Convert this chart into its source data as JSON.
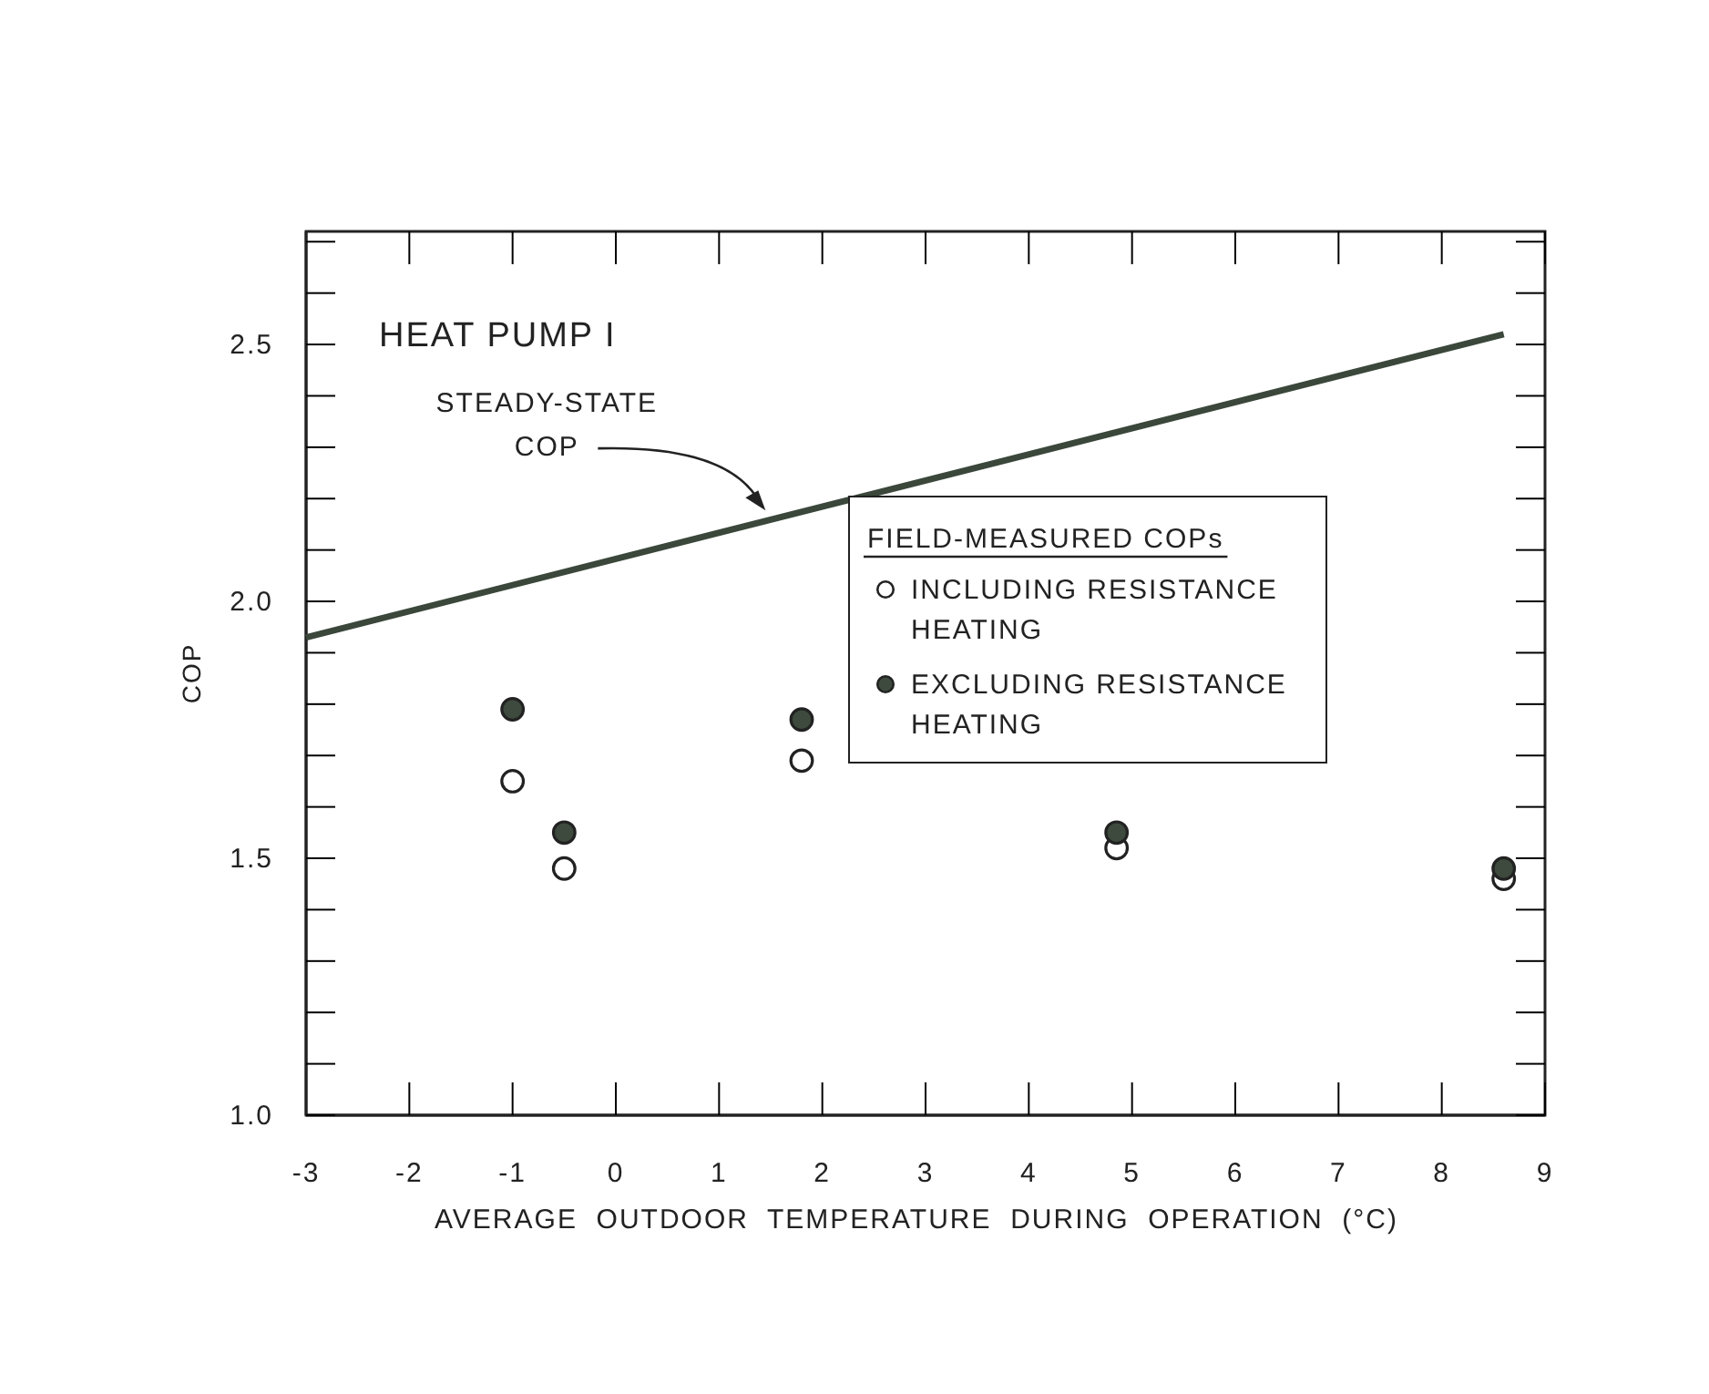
{
  "chart_data": {
    "type": "scatter",
    "title": "HEAT PUMP I",
    "xlabel": "AVERAGE  OUTDOOR  TEMPERATURE  DURING  OPERATION  (°C)",
    "ylabel": "COP",
    "legend_title": "FIELD-MEASURED COPs",
    "legend": "right",
    "grid": false,
    "xlim": [
      -3,
      9
    ],
    "xticks": [
      -3,
      -2,
      -1,
      0,
      1,
      2,
      3,
      4,
      5,
      6,
      7,
      8,
      9
    ],
    "ylim": [
      1.0,
      2.72
    ],
    "yticks": [
      {
        "value": 1.0,
        "label": "1.0"
      },
      {
        "value": 1.1,
        "label": null
      },
      {
        "value": 1.2,
        "label": null
      },
      {
        "value": 1.3,
        "label": null
      },
      {
        "value": 1.4,
        "label": null
      },
      {
        "value": 1.5,
        "label": "1.5"
      },
      {
        "value": 1.6,
        "label": null
      },
      {
        "value": 1.7,
        "label": null
      },
      {
        "value": 1.8,
        "label": null
      },
      {
        "value": 1.9,
        "label": null
      },
      {
        "value": 2.0,
        "label": "2.0"
      },
      {
        "value": 2.1,
        "label": null
      },
      {
        "value": 2.2,
        "label": null
      },
      {
        "value": 2.3,
        "label": null
      },
      {
        "value": 2.4,
        "label": null
      },
      {
        "value": 2.5,
        "label": "2.5"
      },
      {
        "value": 2.6,
        "label": null
      },
      {
        "value": 2.7,
        "label": null
      }
    ],
    "series": [
      {
        "type": "line",
        "color": "#3a473a",
        "x": [
          -3,
          8.6
        ],
        "values": [
          1.93,
          2.52
        ]
      },
      {
        "name": "INCLUDING RESISTANCE HEATING",
        "marker": "circle",
        "color": "#ffffff",
        "x": [
          -1,
          -0.5,
          1.8,
          4.85,
          8.6
        ],
        "values": [
          1.65,
          1.48,
          1.69,
          1.52,
          1.46
        ]
      },
      {
        "name": "EXCLUDING RESISTANCE HEATING",
        "marker": "circle",
        "color": "#3d4a3d",
        "x": [
          -1,
          -0.5,
          1.8,
          4.85,
          8.6
        ],
        "values": [
          1.79,
          1.55,
          1.77,
          1.55,
          1.48
        ]
      }
    ],
    "annotations": [
      {
        "text": "STEADY-STATE COP",
        "x": 1.45,
        "y": 2.17
      }
    ]
  }
}
